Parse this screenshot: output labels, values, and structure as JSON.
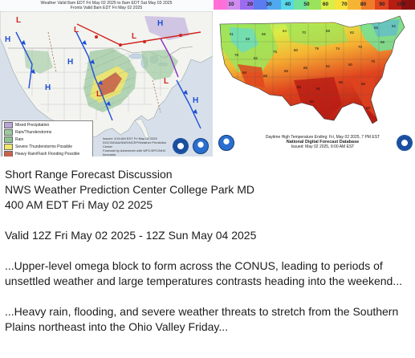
{
  "left_map": {
    "header_lines": [
      "Weather Valid 8am EDT Fri May 02 2025 to 8am EDT Sat May 03 2025",
      "Fronts Valid 8am EDT Fri May 02 2025"
    ],
    "pressure_labels": [
      "H",
      "L",
      "H",
      "H",
      "L",
      "L",
      "H",
      "L",
      "H",
      "L"
    ],
    "legend": [
      {
        "label": "Mixed Precipitation",
        "color": "#b9a7d8"
      },
      {
        "label": "Rain/Thunderstorms",
        "color": "#9ec9a0"
      },
      {
        "label": "Rain",
        "color": "#8fc48f"
      },
      {
        "label": "Severe Thunderstorms Possible",
        "color": "#f2e66a"
      },
      {
        "label": "Heavy Rain/Flash Flooding Possible",
        "color": "#c8634b"
      }
    ],
    "issued_lines": [
      "Issued: 4:54 AM EDT Fri May 02 2025",
      "DOC/NOAA/NWS/NCEP/Weather Prediction Center",
      "Forecast by Ashenmeir with WPC/SPC/NHC forecasts"
    ]
  },
  "right_map": {
    "colorbar": {
      "ticks": [
        "10",
        "20",
        "30",
        "40",
        "50",
        "60",
        "70",
        "80",
        "90",
        "100"
      ],
      "colors": [
        "#ff6fd7",
        "#d08cf0",
        "#9b6cf0",
        "#5b7cf0",
        "#4fa8f0",
        "#55d8e8",
        "#6fe39a",
        "#9be35a",
        "#d9ee46",
        "#f7e23c",
        "#f6b433",
        "#f07c2a",
        "#e0451f",
        "#b81d14",
        "#8a1010"
      ]
    },
    "footer_lines": [
      "Daytime High Temperature Ending: Fri, May 02 2025, 7 PM EST",
      "National Digital Forecast Database",
      "Issued: May 02 2025, 9:00 AM EST"
    ]
  },
  "discussion": {
    "title_lines": [
      "Short Range Forecast Discussion",
      "NWS Weather Prediction Center College Park MD",
      "400 AM EDT Fri May 02 2025"
    ],
    "valid_line": "Valid 12Z Fri May 02 2025 - 12Z Sun May 04 2025",
    "paragraph_1": "...Upper-level omega block to form across the CONUS, leading to periods of unsettled weather and large temperatures contrasts heading into the weekend...",
    "paragraph_2": "...Heavy rain, flooding, and severe weather threats to stretch from the Southern Plains northeast into the Ohio Valley Friday..."
  }
}
